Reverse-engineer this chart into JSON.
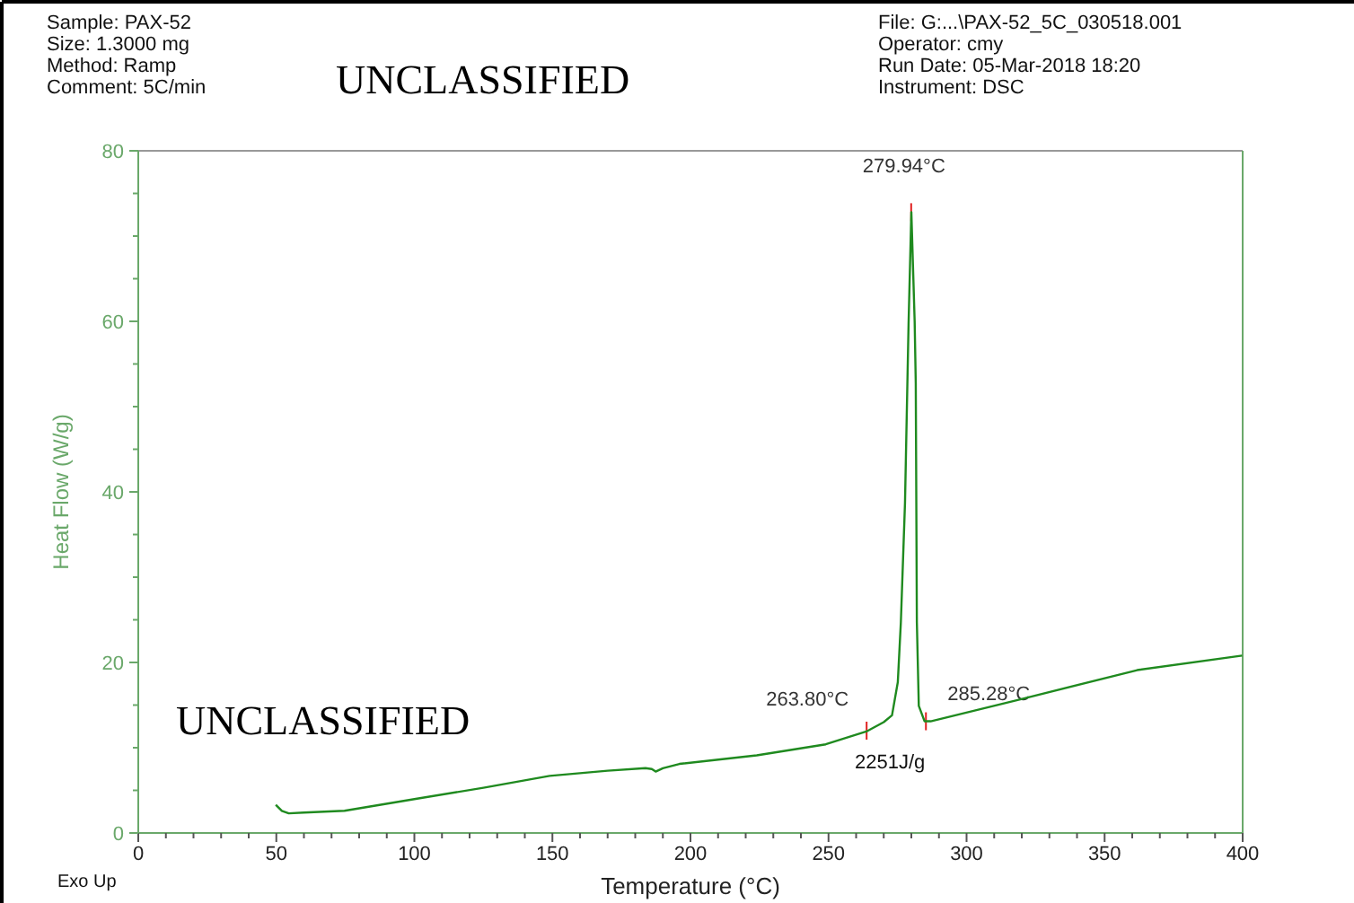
{
  "chart_data": {
    "type": "line",
    "xlabel": "Temperature (°C)",
    "ylabel": "Heat Flow (W/g)",
    "xlim": [
      0,
      400
    ],
    "ylim": [
      0,
      80
    ],
    "xticks": [
      0,
      {
        "value": 10,
        "label": null
      },
      {
        "value": 20,
        "label": null
      },
      {
        "value": 30,
        "label": null
      },
      {
        "value": 40,
        "label": null
      },
      50,
      {
        "value": 60,
        "label": null
      },
      {
        "value": 70,
        "label": null
      },
      {
        "value": 80,
        "label": null
      },
      {
        "value": 90,
        "label": null
      },
      100,
      {
        "value": 110,
        "label": null
      },
      {
        "value": 120,
        "label": null
      },
      {
        "value": 130,
        "label": null
      },
      {
        "value": 140,
        "label": null
      },
      150,
      {
        "value": 160,
        "label": null
      },
      {
        "value": 170,
        "label": null
      },
      {
        "value": 180,
        "label": null
      },
      {
        "value": 190,
        "label": null
      },
      200,
      {
        "value": 210,
        "label": null
      },
      {
        "value": 220,
        "label": null
      },
      {
        "value": 230,
        "label": null
      },
      {
        "value": 240,
        "label": null
      },
      250,
      {
        "value": 260,
        "label": null
      },
      {
        "value": 270,
        "label": null
      },
      {
        "value": 280,
        "label": null
      },
      {
        "value": 290,
        "label": null
      },
      300,
      {
        "value": 310,
        "label": null
      },
      {
        "value": 320,
        "label": null
      },
      {
        "value": 330,
        "label": null
      },
      {
        "value": 340,
        "label": null
      },
      350,
      {
        "value": 360,
        "label": null
      },
      {
        "value": 370,
        "label": null
      },
      {
        "value": 380,
        "label": null
      },
      {
        "value": 390,
        "label": null
      },
      400
    ],
    "yticks": [
      0,
      {
        "value": 5,
        "label": null
      },
      {
        "value": 10,
        "label": null
      },
      {
        "value": 15,
        "label": null
      },
      20,
      {
        "value": 25,
        "label": null
      },
      {
        "value": 30,
        "label": null
      },
      {
        "value": 35,
        "label": null
      },
      40,
      {
        "value": 45,
        "label": null
      },
      {
        "value": 50,
        "label": null
      },
      {
        "value": 55,
        "label": null
      },
      60,
      {
        "value": 65,
        "label": null
      },
      {
        "value": 70,
        "label": null
      },
      {
        "value": 75,
        "label": null
      },
      80
    ],
    "series": [
      {
        "color": "#1f8a1f",
        "x": [
          49.8,
          52,
          54.5,
          60,
          74.7,
          100.5,
          125,
          149,
          170,
          183.7,
          186,
          187.4,
          190,
          196,
          224,
          249,
          263.7,
          264.9,
          270,
          273,
          275.1,
          276.2,
          277.7,
          279,
          280,
          281.2,
          281.6,
          282,
          282.7,
          284.8,
          287,
          318.5,
          361.8,
          399.8
        ],
        "values": [
          3.3,
          2.6,
          2.3,
          2.4,
          2.6,
          4.0,
          5.3,
          6.7,
          7.3,
          7.6,
          7.5,
          7.2,
          7.6,
          8.1,
          9.1,
          10.4,
          11.9,
          12.1,
          13.0,
          13.8,
          17.7,
          24.7,
          38.7,
          59.8,
          72.8,
          60,
          52.8,
          24.7,
          14.9,
          13.1,
          13.1,
          15.6,
          19.1,
          20.8
        ]
      }
    ],
    "annotations": [
      {
        "text": "279.94°C",
        "x": 279.94,
        "y": 72.8
      },
      {
        "text": "263.80°C",
        "x": 263.8,
        "y": 12
      },
      {
        "text": "285.28°C",
        "x": 285.28,
        "y": 13.1
      },
      "2251J/g",
      "Sample: PAX-52",
      "Size:  1.3000 mg",
      "Method: Ramp",
      "Comment: 5C/min",
      "File: G:...\\PAX-52_5C_030518.001",
      "Operator: cmy",
      "Run Date: 05-Mar-2018 18:20",
      "Instrument: DSC",
      "UNCLASSIFIED",
      "UNCLASSIFIED",
      "Exo Up"
    ]
  }
}
